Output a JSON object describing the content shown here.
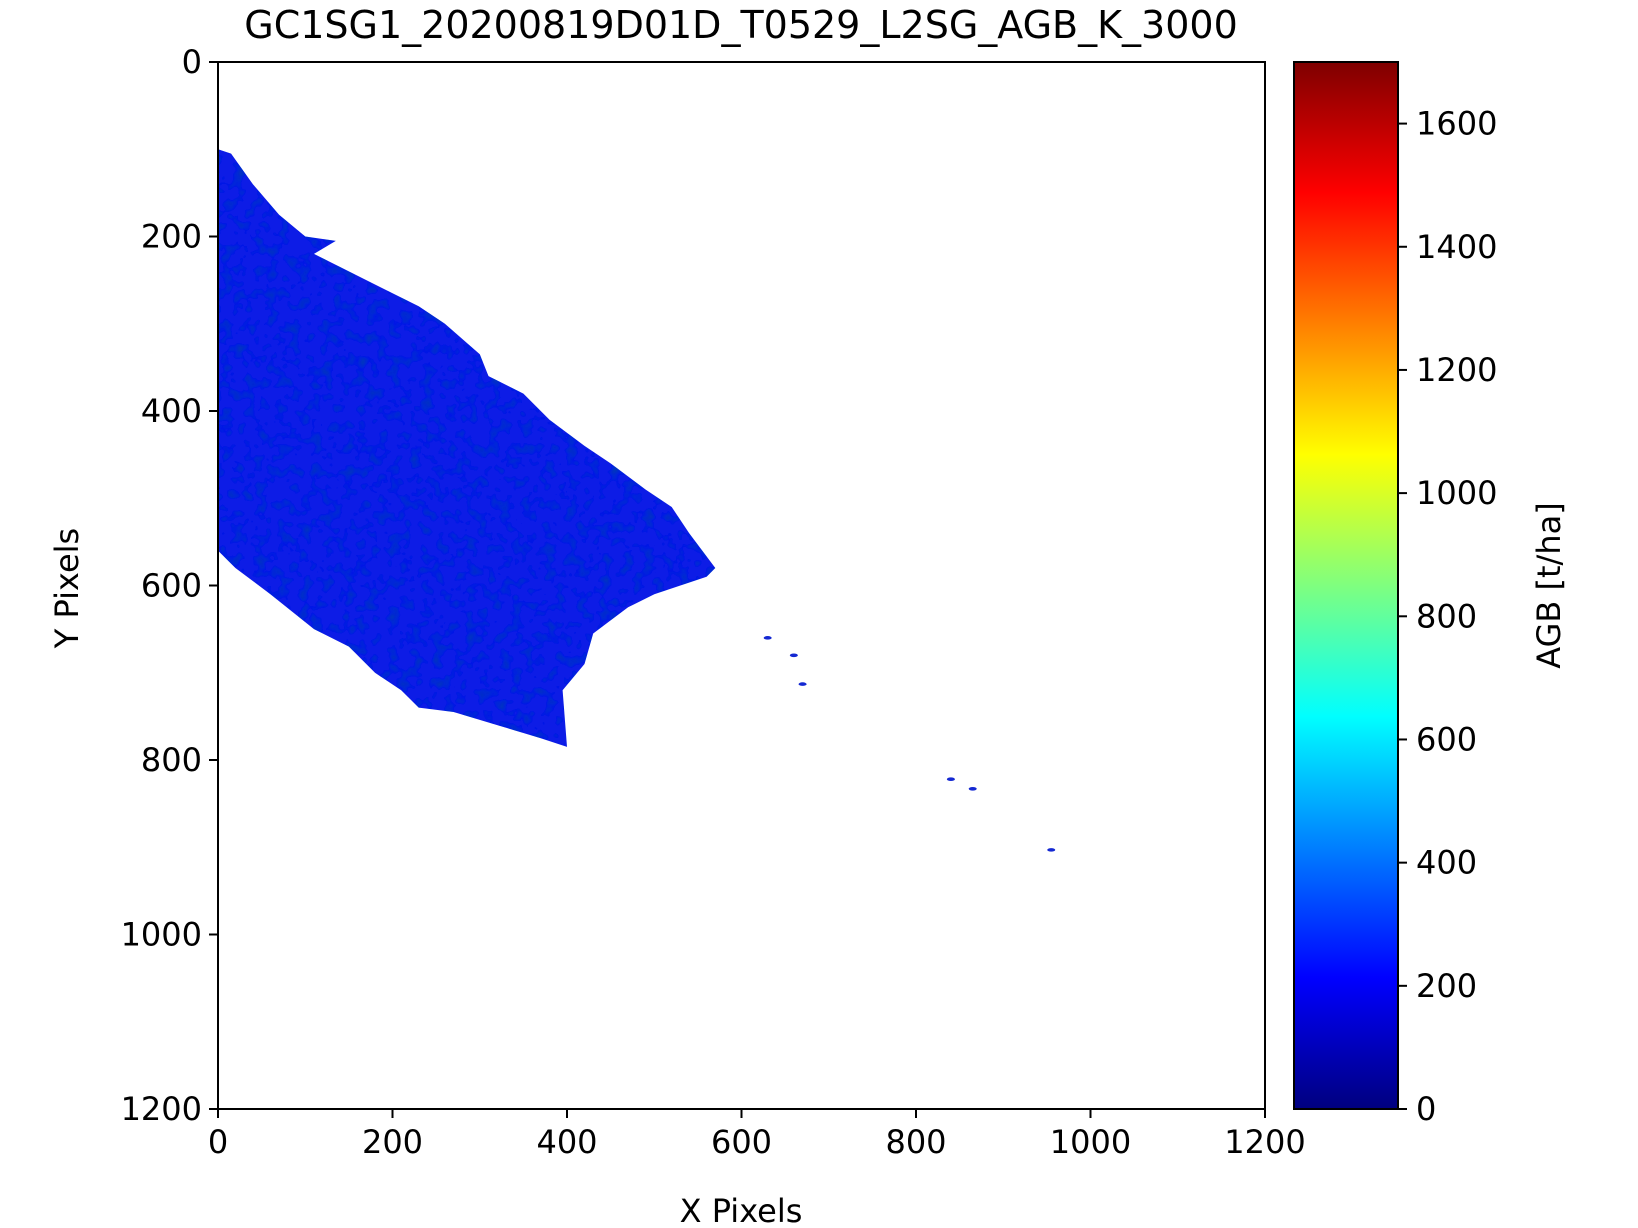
{
  "chart_data": {
    "type": "heatmap",
    "title": "GC1SG1_20200819D01D_T0529_L2SG_AGB_K_3000",
    "xlabel": "X Pixels",
    "ylabel": "Y Pixels",
    "xlim": [
      0,
      1200
    ],
    "ylim": [
      1200,
      0
    ],
    "y_axis_inverted": true,
    "x_ticks": [
      0,
      200,
      400,
      600,
      800,
      1000,
      1200
    ],
    "x_tick_labels": [
      "0",
      "200",
      "400",
      "600",
      "800",
      "1000",
      "1200"
    ],
    "y_ticks": [
      0,
      200,
      400,
      600,
      800,
      1000,
      1200
    ],
    "y_tick_labels": [
      "0",
      "200",
      "400",
      "600",
      "800",
      "1000",
      "1200"
    ],
    "grid": false,
    "colormap": "jet",
    "colorbar": {
      "label": "AGB [t/ha]",
      "range": [
        0,
        1700
      ],
      "ticks": [
        0,
        200,
        400,
        600,
        800,
        1000,
        1200,
        1400,
        1600
      ],
      "tick_labels": [
        "0",
        "200",
        "400",
        "600",
        "800",
        "1000",
        "1200",
        "1400",
        "1600"
      ],
      "colors": [
        "#00007f",
        "#0000ff",
        "#007fff",
        "#00ffff",
        "#7fff7f",
        "#ffff00",
        "#ff7f00",
        "#ff0000",
        "#7f0000"
      ]
    },
    "data_region": {
      "value_range_approx": [
        100,
        300
      ],
      "dominant_color": "#0a1ee6",
      "outline_xy": [
        [
          0,
          100
        ],
        [
          15,
          105
        ],
        [
          40,
          140
        ],
        [
          70,
          175
        ],
        [
          100,
          200
        ],
        [
          135,
          205
        ],
        [
          110,
          220
        ],
        [
          170,
          250
        ],
        [
          230,
          280
        ],
        [
          260,
          300
        ],
        [
          300,
          335
        ],
        [
          310,
          360
        ],
        [
          350,
          380
        ],
        [
          380,
          410
        ],
        [
          420,
          440
        ],
        [
          450,
          460
        ],
        [
          490,
          490
        ],
        [
          520,
          510
        ],
        [
          540,
          540
        ],
        [
          570,
          580
        ],
        [
          560,
          590
        ],
        [
          530,
          600
        ],
        [
          500,
          610
        ],
        [
          470,
          625
        ],
        [
          450,
          640
        ],
        [
          430,
          655
        ],
        [
          420,
          690
        ],
        [
          395,
          720
        ],
        [
          400,
          785
        ],
        [
          370,
          775
        ],
        [
          320,
          760
        ],
        [
          270,
          745
        ],
        [
          230,
          740
        ],
        [
          210,
          720
        ],
        [
          180,
          700
        ],
        [
          150,
          670
        ],
        [
          110,
          650
        ],
        [
          60,
          610
        ],
        [
          20,
          580
        ],
        [
          0,
          560
        ]
      ],
      "scattered_points_xy": [
        [
          630,
          660
        ],
        [
          660,
          680
        ],
        [
          670,
          713
        ],
        [
          840,
          822
        ],
        [
          865,
          833
        ],
        [
          955,
          903
        ]
      ]
    }
  }
}
